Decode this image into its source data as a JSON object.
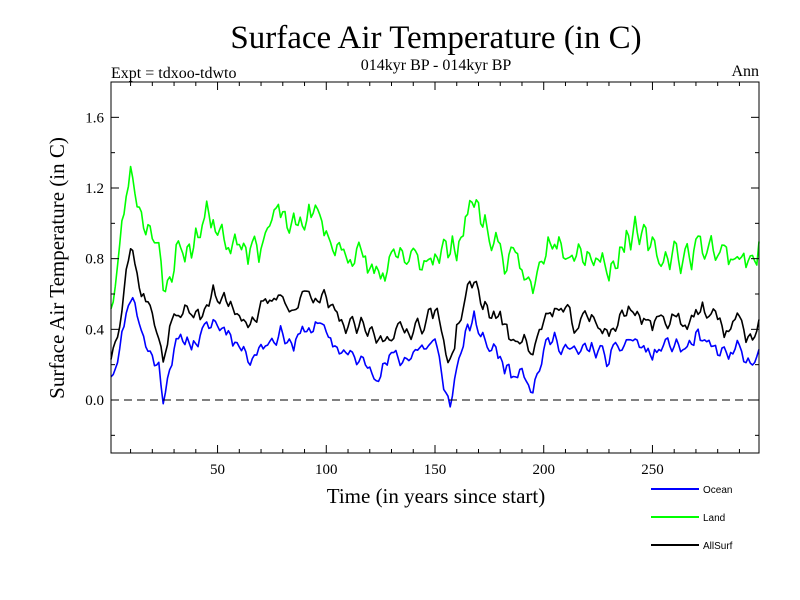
{
  "chart_data": {
    "type": "line",
    "title": "Surface Air Temperature (in C)",
    "subtitle": "014kyr BP - 014kyr BP",
    "left_label": "Expt = tdxoo-tdwto",
    "right_label": "Ann",
    "xlabel": "Time (in years since start)",
    "ylabel": "Surface Air Temperature (in C)",
    "xlim": [
      1,
      299
    ],
    "ylim": [
      -0.3,
      1.8
    ],
    "xticks": [
      50,
      100,
      150,
      200,
      250
    ],
    "yticks": [
      0.0,
      0.4,
      0.8,
      1.2,
      1.6
    ],
    "ytick_labels": [
      "0.0",
      "0.4",
      "0.8",
      "1.2",
      "1.6"
    ],
    "zero_line": 0.0,
    "series": [
      {
        "name": "Ocean",
        "color": "#0000ff",
        "anchors_x": [
          1,
          3,
          6,
          8,
          10,
          12,
          14,
          17,
          20,
          23,
          25,
          28,
          31,
          35,
          40,
          45,
          48,
          50,
          55,
          60,
          65,
          70,
          75,
          80,
          85,
          90,
          95,
          100,
          105,
          110,
          115,
          120,
          125,
          130,
          135,
          140,
          145,
          150,
          155,
          157,
          160,
          165,
          168,
          170,
          175,
          180,
          185,
          190,
          195,
          200,
          205,
          210,
          215,
          220,
          225,
          230,
          235,
          240,
          245,
          250,
          255,
          260,
          265,
          270,
          275,
          280,
          285,
          290,
          295,
          299
        ],
        "anchors_y": [
          0.15,
          0.2,
          0.35,
          0.5,
          0.6,
          0.55,
          0.45,
          0.3,
          0.25,
          0.18,
          0.02,
          0.2,
          0.3,
          0.35,
          0.32,
          0.4,
          0.45,
          0.42,
          0.4,
          0.3,
          0.25,
          0.3,
          0.35,
          0.38,
          0.3,
          0.4,
          0.42,
          0.38,
          0.3,
          0.25,
          0.22,
          0.2,
          0.15,
          0.25,
          0.22,
          0.28,
          0.3,
          0.32,
          0.05,
          -0.05,
          0.2,
          0.38,
          0.45,
          0.4,
          0.3,
          0.25,
          0.15,
          0.2,
          0.05,
          0.28,
          0.35,
          0.3,
          0.25,
          0.3,
          0.28,
          0.22,
          0.3,
          0.35,
          0.3,
          0.25,
          0.3,
          0.32,
          0.28,
          0.35,
          0.3,
          0.28,
          0.25,
          0.3,
          0.15,
          0.25
        ],
        "noise": 0.065,
        "seed": 11
      },
      {
        "name": "Land",
        "color": "#00ff00",
        "anchors_x": [
          1,
          3,
          6,
          8,
          10,
          12,
          14,
          17,
          20,
          23,
          25,
          28,
          31,
          35,
          40,
          45,
          48,
          50,
          55,
          60,
          65,
          70,
          75,
          80,
          85,
          90,
          95,
          100,
          105,
          110,
          115,
          120,
          125,
          130,
          135,
          140,
          145,
          150,
          155,
          157,
          160,
          165,
          168,
          170,
          175,
          180,
          185,
          190,
          195,
          200,
          205,
          210,
          215,
          220,
          225,
          230,
          235,
          240,
          245,
          250,
          255,
          260,
          265,
          270,
          275,
          280,
          285,
          290,
          295,
          299
        ],
        "anchors_y": [
          0.55,
          0.65,
          0.95,
          1.15,
          1.3,
          1.2,
          1.1,
          1.0,
          1.0,
          0.85,
          0.55,
          0.7,
          0.85,
          0.85,
          0.9,
          1.05,
          1.05,
          0.95,
          0.9,
          0.95,
          0.85,
          0.9,
          1.0,
          1.05,
          0.95,
          1.05,
          1.05,
          0.95,
          0.85,
          0.85,
          0.8,
          0.75,
          0.7,
          0.75,
          0.8,
          0.78,
          0.8,
          0.85,
          0.85,
          0.8,
          0.9,
          1.05,
          1.15,
          1.05,
          0.95,
          0.85,
          0.75,
          0.75,
          0.6,
          0.85,
          0.95,
          0.9,
          0.85,
          0.85,
          0.8,
          0.75,
          0.85,
          0.95,
          0.9,
          0.85,
          0.8,
          0.85,
          0.8,
          0.85,
          0.9,
          0.85,
          0.8,
          0.85,
          0.75,
          0.9
        ],
        "noise": 0.12,
        "seed": 23
      },
      {
        "name": "AllSurf",
        "color": "#000000",
        "anchors_x": [
          1,
          3,
          6,
          8,
          10,
          12,
          14,
          17,
          20,
          23,
          25,
          28,
          31,
          35,
          40,
          45,
          48,
          50,
          55,
          60,
          65,
          70,
          75,
          80,
          85,
          90,
          95,
          100,
          105,
          110,
          115,
          120,
          125,
          130,
          135,
          140,
          145,
          150,
          155,
          157,
          160,
          165,
          168,
          170,
          175,
          180,
          185,
          190,
          195,
          200,
          205,
          210,
          215,
          220,
          225,
          230,
          235,
          240,
          245,
          250,
          255,
          260,
          265,
          270,
          275,
          280,
          285,
          290,
          295,
          299
        ],
        "anchors_y": [
          0.25,
          0.35,
          0.55,
          0.75,
          0.85,
          0.8,
          0.65,
          0.55,
          0.5,
          0.38,
          0.2,
          0.4,
          0.48,
          0.5,
          0.48,
          0.55,
          0.6,
          0.56,
          0.55,
          0.5,
          0.45,
          0.5,
          0.55,
          0.6,
          0.5,
          0.6,
          0.62,
          0.55,
          0.45,
          0.42,
          0.4,
          0.38,
          0.33,
          0.4,
          0.38,
          0.42,
          0.45,
          0.5,
          0.3,
          0.22,
          0.4,
          0.6,
          0.68,
          0.6,
          0.5,
          0.45,
          0.35,
          0.38,
          0.25,
          0.45,
          0.52,
          0.48,
          0.42,
          0.46,
          0.44,
          0.38,
          0.45,
          0.52,
          0.48,
          0.42,
          0.46,
          0.48,
          0.44,
          0.5,
          0.48,
          0.44,
          0.4,
          0.46,
          0.32,
          0.45
        ],
        "noise": 0.075,
        "seed": 37
      }
    ],
    "legend": {
      "placement": "bottom-right",
      "entries": [
        {
          "label": "Ocean",
          "color": "#0000ff"
        },
        {
          "label": "Land",
          "color": "#00ff00"
        },
        {
          "label": "AllSurf",
          "color": "#000000"
        }
      ]
    }
  }
}
